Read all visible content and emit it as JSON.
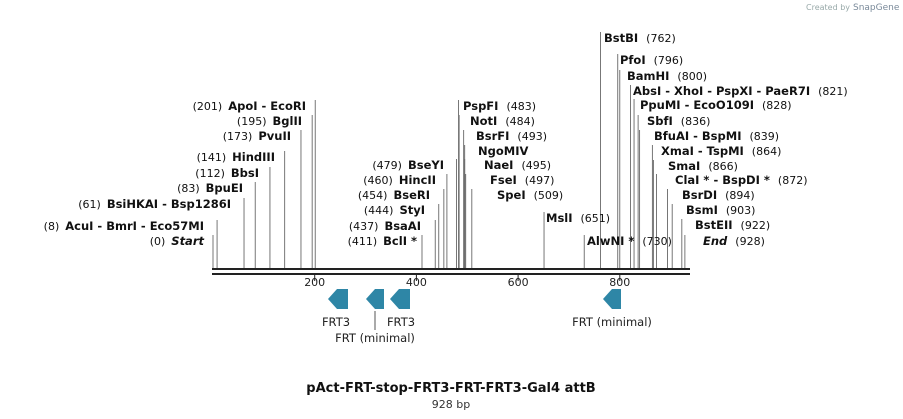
{
  "watermark": {
    "prefix": "Created by",
    "brand": "SnapGene"
  },
  "map": {
    "title": "pAct-FRT-stop-FRT3-FRT-FRT3-Gal4 attB",
    "length_label": "928 bp",
    "length": 928,
    "ticks": [
      200,
      400,
      600,
      800
    ]
  },
  "sites": [
    {
      "name": "Start",
      "pos": "(0)",
      "bp": 0,
      "side": "left",
      "italic": true
    },
    {
      "name": "AcuI - BmrI - Eco57MI",
      "pos": "(8)",
      "bp": 8,
      "side": "left"
    },
    {
      "name": "BsiHKAI - Bsp1286I",
      "pos": "(61)",
      "bp": 61,
      "side": "left"
    },
    {
      "name": "BpuEI",
      "pos": "(83)",
      "bp": 83,
      "side": "left"
    },
    {
      "name": "BbsI",
      "pos": "(112)",
      "bp": 112,
      "side": "left"
    },
    {
      "name": "HindIII",
      "pos": "(141)",
      "bp": 141,
      "side": "left"
    },
    {
      "name": "PvuII",
      "pos": "(173)",
      "bp": 173,
      "side": "left"
    },
    {
      "name": "BglII",
      "pos": "(195)",
      "bp": 195,
      "side": "left"
    },
    {
      "name": "ApoI - EcoRI",
      "pos": "(201)",
      "bp": 201,
      "side": "left"
    },
    {
      "name": "BclI *",
      "pos": "(411)",
      "bp": 411,
      "side": "left"
    },
    {
      "name": "BsaAI",
      "pos": "(437)",
      "bp": 437,
      "side": "left"
    },
    {
      "name": "StyI",
      "pos": "(444)",
      "bp": 444,
      "side": "left"
    },
    {
      "name": "BseRI",
      "pos": "(454)",
      "bp": 454,
      "side": "left"
    },
    {
      "name": "HincII",
      "pos": "(460)",
      "bp": 460,
      "side": "left"
    },
    {
      "name": "BseYI",
      "pos": "(479)",
      "bp": 479,
      "side": "left"
    },
    {
      "name": "PspFI",
      "pos": "(483)",
      "bp": 483,
      "side": "right"
    },
    {
      "name": "NotI",
      "pos": "(484)",
      "bp": 484,
      "side": "right"
    },
    {
      "name": "BsrFI",
      "pos": "(493)",
      "bp": 493,
      "side": "right"
    },
    {
      "name": "NgoMIV",
      "pos": "",
      "bp": 495,
      "side": "right"
    },
    {
      "name": "NaeI",
      "pos": "(495)",
      "bp": 495,
      "side": "right"
    },
    {
      "name": "FseI",
      "pos": "(497)",
      "bp": 497,
      "side": "right"
    },
    {
      "name": "SpeI",
      "pos": "(509)",
      "bp": 509,
      "side": "right"
    },
    {
      "name": "MslI",
      "pos": "(651)",
      "bp": 651,
      "side": "right"
    },
    {
      "name": "AlwNI *",
      "pos": "(730)",
      "bp": 730,
      "side": "right"
    },
    {
      "name": "BstBI",
      "pos": "(762)",
      "bp": 762,
      "side": "right"
    },
    {
      "name": "PfoI",
      "pos": "(796)",
      "bp": 796,
      "side": "right"
    },
    {
      "name": "BamHI",
      "pos": "(800)",
      "bp": 800,
      "side": "right"
    },
    {
      "name": "AbsI - XhoI - PspXI - PaeR7I",
      "pos": "(821)",
      "bp": 821,
      "side": "right"
    },
    {
      "name": "PpuMI - EcoO109I",
      "pos": "(828)",
      "bp": 828,
      "side": "right"
    },
    {
      "name": "SbfI",
      "pos": "(836)",
      "bp": 836,
      "side": "right"
    },
    {
      "name": "BfuAI - BspMI",
      "pos": "(839)",
      "bp": 839,
      "side": "right"
    },
    {
      "name": "XmaI - TspMI",
      "pos": "(864)",
      "bp": 864,
      "side": "right"
    },
    {
      "name": "SmaI",
      "pos": "(866)",
      "bp": 866,
      "side": "right"
    },
    {
      "name": "ClaI * - BspDI *",
      "pos": "(872)",
      "bp": 872,
      "side": "right"
    },
    {
      "name": "BsrDI",
      "pos": "(894)",
      "bp": 894,
      "side": "right"
    },
    {
      "name": "BsmI",
      "pos": "(903)",
      "bp": 903,
      "side": "right"
    },
    {
      "name": "BstEII",
      "pos": "(922)",
      "bp": 922,
      "side": "right"
    },
    {
      "name": "End",
      "pos": "(928)",
      "bp": 928,
      "side": "right",
      "italic": true
    }
  ],
  "features": [
    {
      "name": "FRT3",
      "direction": "reverse"
    },
    {
      "name": "FRT (minimal)",
      "direction": "reverse"
    },
    {
      "name": "FRT3",
      "direction": "reverse"
    },
    {
      "name": "FRT (minimal)",
      "direction": "reverse"
    }
  ],
  "colors": {
    "feature": "#2e86a6",
    "line": "#222222",
    "leader": "#555555"
  }
}
